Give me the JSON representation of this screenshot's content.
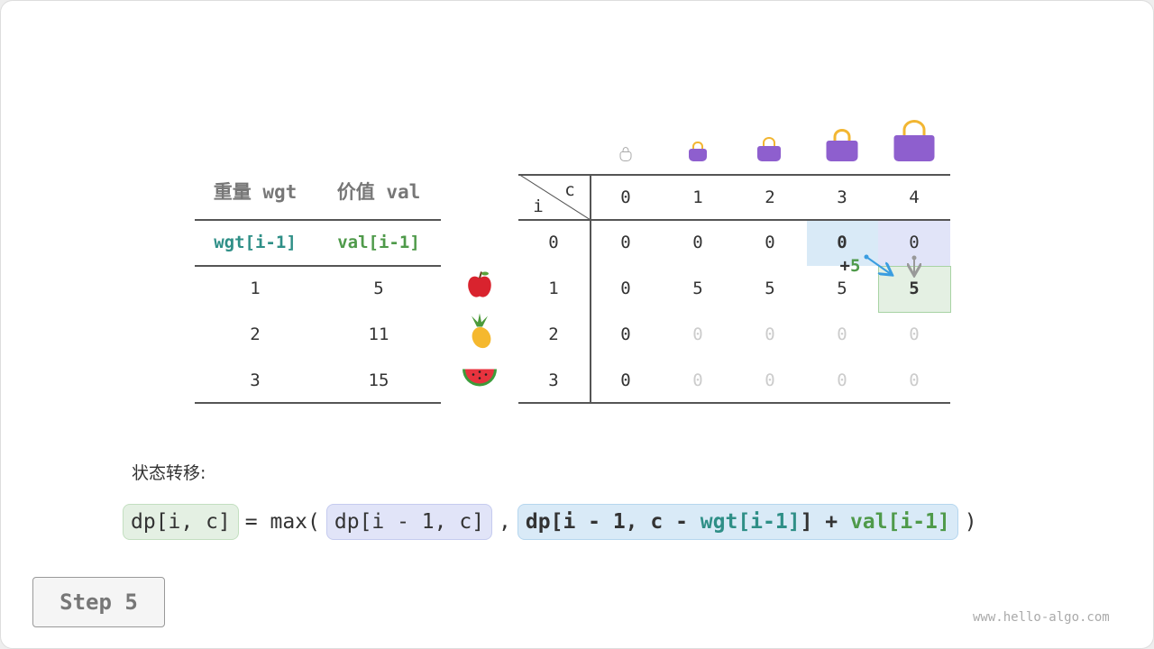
{
  "items_table": {
    "headers": [
      "重量 wgt",
      "价值 val"
    ],
    "subheaders": [
      "wgt[i-1]",
      "val[i-1]"
    ],
    "rows": [
      [
        "1",
        "5"
      ],
      [
        "2",
        "11"
      ],
      [
        "3",
        "15"
      ]
    ]
  },
  "items_icons": [
    "apple-icon",
    "pineapple-icon",
    "watermelon-icon"
  ],
  "dp_table": {
    "row_label": "i",
    "col_label": "c",
    "cols": [
      "0",
      "1",
      "2",
      "3",
      "4"
    ],
    "row_index": [
      "0",
      "1",
      "2",
      "3"
    ],
    "rows": [
      [
        "0",
        "0",
        "0",
        "0",
        "0"
      ],
      [
        "0",
        "5",
        "5",
        "5",
        "5"
      ],
      [
        "0",
        "0",
        "0",
        "0",
        "0"
      ],
      [
        "0",
        "0",
        "0",
        "0",
        "0"
      ]
    ]
  },
  "annotation": {
    "plus": "+",
    "value": "5"
  },
  "transition_label": "状态转移:",
  "formula": {
    "lhs": "dp[i, c]",
    "eq": "= max(",
    "opt1": "dp[i - 1, c]",
    "comma": ",",
    "opt2_a": "dp[i - 1, c - ",
    "opt2_wgt": "wgt[i-1]",
    "opt2_b": "] + ",
    "opt2_val": "val[i-1]",
    "close": ")"
  },
  "step_button": "Step 5",
  "watermark": "www.hello-algo.com",
  "colors": {
    "blue": "#d9eaf7",
    "purple": "#e1e4f8",
    "green": "#e4f0e3",
    "teal": "#2f8f87",
    "val_green": "#4f9a4a",
    "bag": "#8e5fce"
  }
}
